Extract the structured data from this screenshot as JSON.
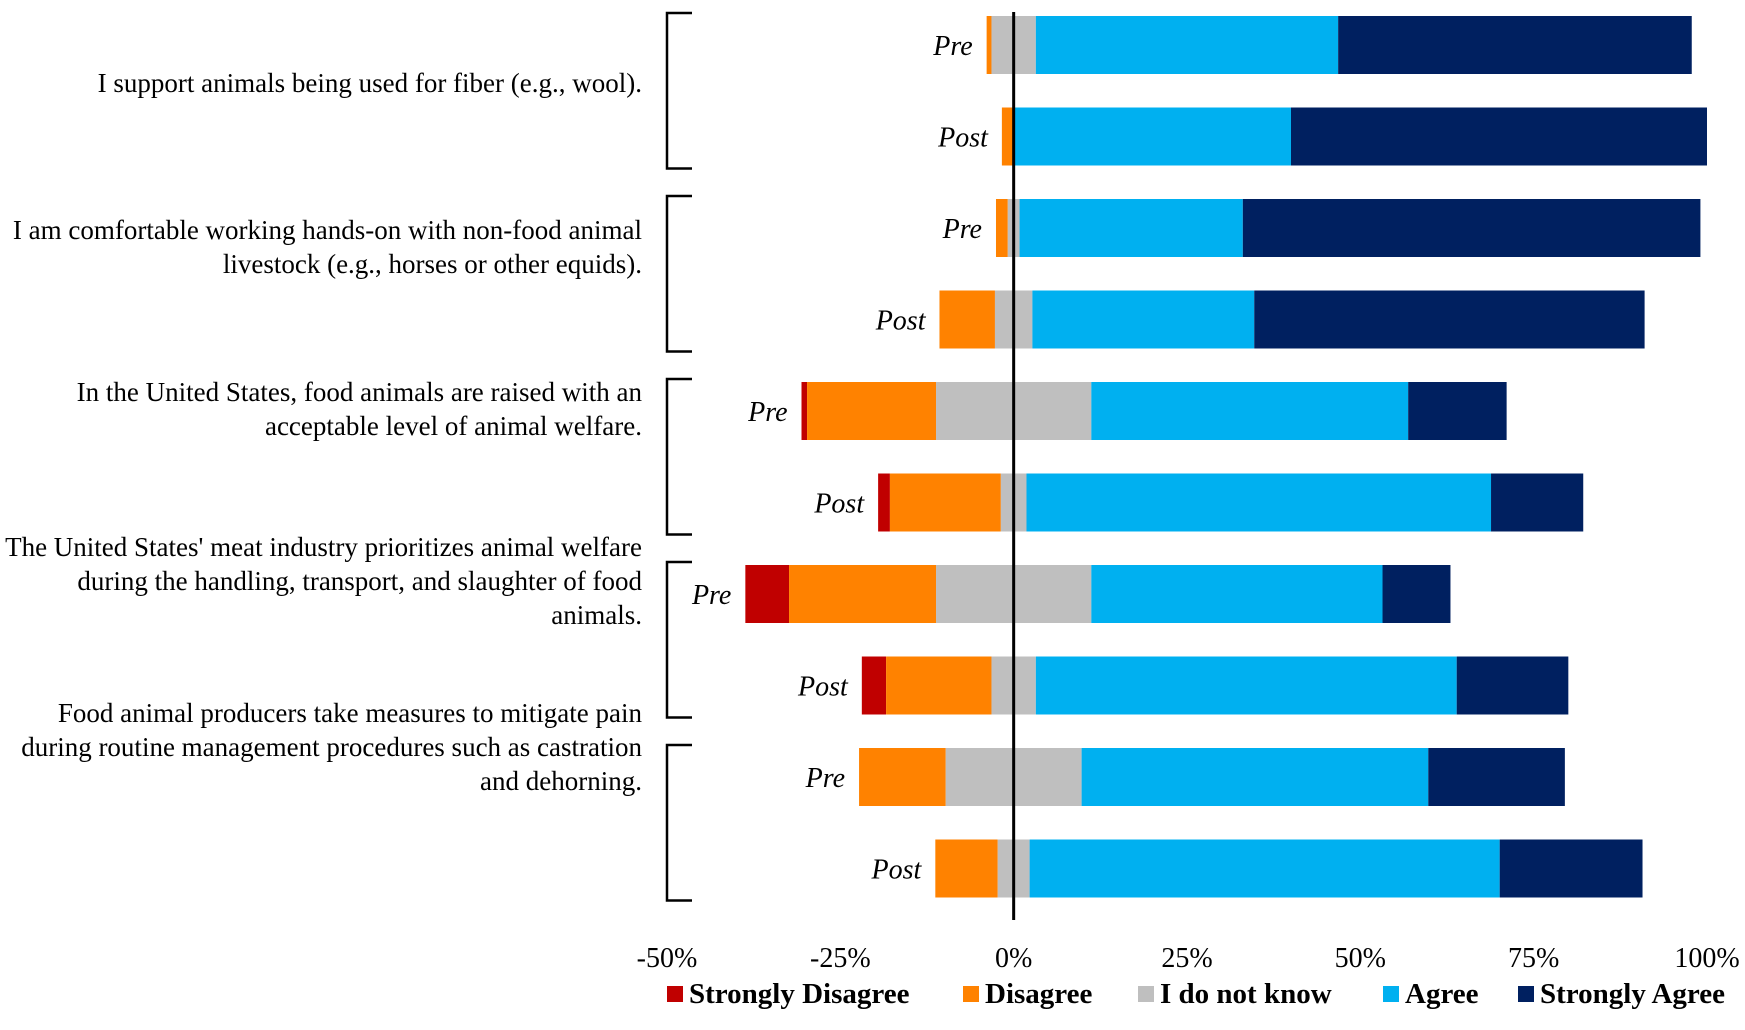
{
  "chart_data": {
    "type": "bar",
    "orientation": "horizontal",
    "stacking": "diverging",
    "xlim": [
      -50,
      100
    ],
    "x_ticks": [
      "-50%",
      "-25%",
      "0%",
      "25%",
      "50%",
      "75%",
      "100%"
    ],
    "x_tick_values": [
      -50,
      -25,
      0,
      25,
      50,
      75,
      100
    ],
    "series_names": [
      "Strongly Disagree",
      "Disagree",
      "I do not know",
      "Agree",
      "Strongly Agree"
    ],
    "colors": [
      "#c00000",
      "#ff8200",
      "#bfbfbf",
      "#00b0f0",
      "#002060"
    ],
    "groups": [
      {
        "statement": "I support animals being used for fiber (e.g., wool).",
        "rows": [
          {
            "label": "Pre",
            "values": [
              0,
              0.7,
              6.4,
              43.6,
              51.0
            ]
          },
          {
            "label": "Post",
            "values": [
              0,
              1.7,
              0,
              40.0,
              60.0
            ]
          }
        ]
      },
      {
        "statement": "I am comfortable working hands-on with non-food animal livestock (e.g., horses or other equids).",
        "rows": [
          {
            "label": "Pre",
            "values": [
              0,
              1.7,
              1.7,
              32.2,
              66.0
            ]
          },
          {
            "label": "Post",
            "values": [
              0,
              8.0,
              5.4,
              32.0,
              56.3
            ]
          }
        ]
      },
      {
        "statement": "In the United States, food animals are raised with an acceptable level of animal welfare.",
        "rows": [
          {
            "label": "Pre",
            "values": [
              0.8,
              18.6,
              22.4,
              45.7,
              14.2
            ]
          },
          {
            "label": "Post",
            "values": [
              1.7,
              16.0,
              3.7,
              67.0,
              13.3
            ]
          }
        ]
      },
      {
        "statement": "The United States' meat industry prioritizes animal welfare during the handling, transport, and slaughter of food animals.",
        "rows": [
          {
            "label": "Pre",
            "values": [
              6.3,
              21.2,
              22.4,
              42.0,
              9.8
            ]
          },
          {
            "label": "Post",
            "values": [
              3.5,
              15.2,
              6.4,
              60.7,
              16.1
            ]
          }
        ]
      },
      {
        "statement": "Food animal producers take measures to mitigate pain during routine management procedures such as castration and dehorning.",
        "rows": [
          {
            "label": "Pre",
            "values": [
              0,
              12.5,
              19.6,
              50.0,
              19.7
            ]
          },
          {
            "label": "Post",
            "values": [
              0,
              9.0,
              4.6,
              67.8,
              20.6
            ]
          }
        ]
      }
    ]
  }
}
